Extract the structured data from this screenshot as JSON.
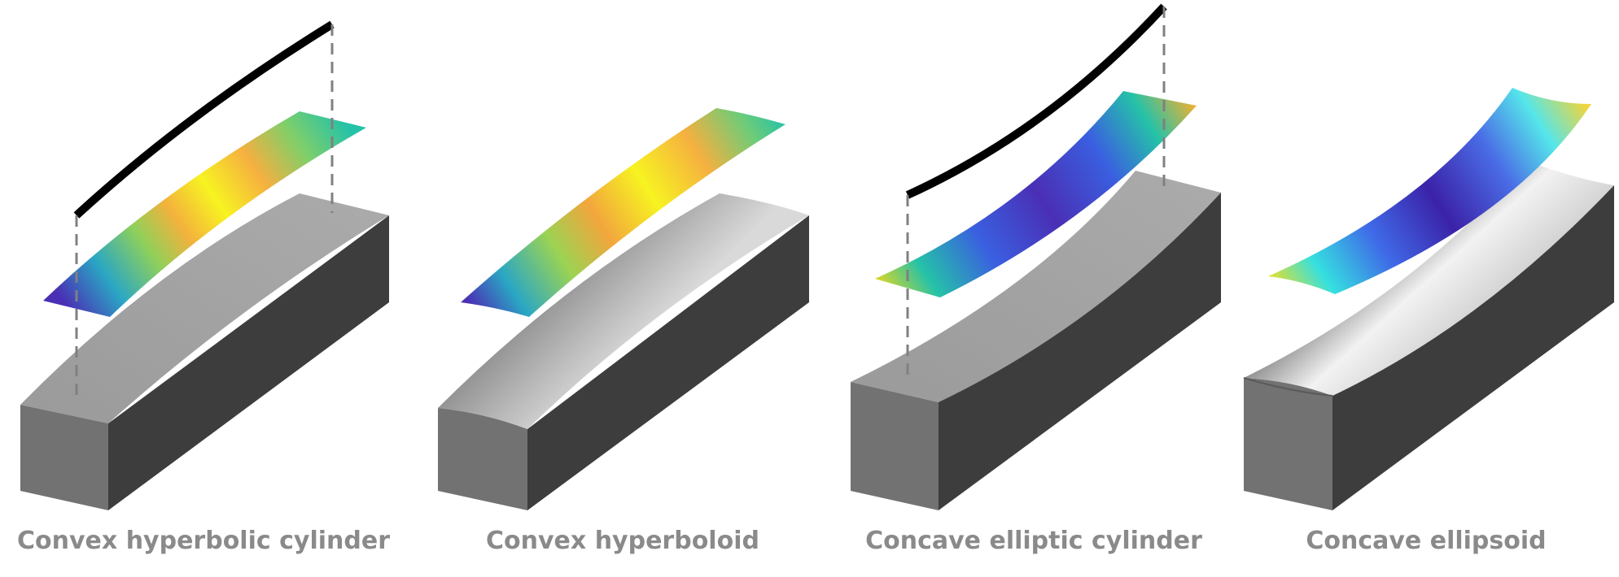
{
  "panels": [
    {
      "caption": "Convex hyperbolic cylinder"
    },
    {
      "caption": "Convex hyperboloid"
    },
    {
      "caption": "Concave elliptic cylinder"
    },
    {
      "caption": "Concave ellipsoid"
    }
  ],
  "colors": {
    "block_top": "#a3a3a3",
    "block_front": "#727272",
    "block_side": "#3c3c3c",
    "caption": "#8a8a8a",
    "curve": "#000000",
    "dashes": "#808080",
    "viridis_dark": "#4a2fb5",
    "viridis_mid": "#25c2a8",
    "viridis_yellow": "#f7f321",
    "warm_orange": "#f5a93d"
  }
}
